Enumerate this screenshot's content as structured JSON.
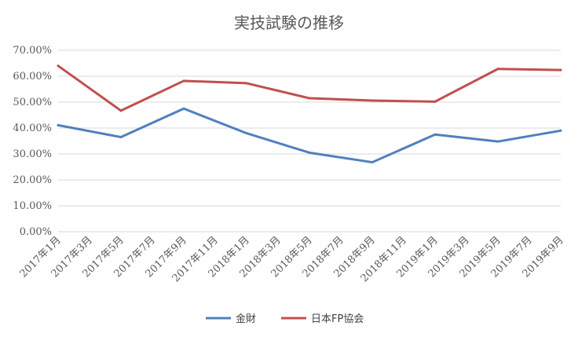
{
  "chart_data": {
    "type": "line",
    "title": "実技試験の推移",
    "categories": [
      "2017年1月",
      "2017年3月",
      "2017年5月",
      "2017年7月",
      "2017年9月",
      "2017年11月",
      "2018年1月",
      "2018年3月",
      "2018年5月",
      "2018年7月",
      "2018年9月",
      "2018年11月",
      "2019年1月",
      "2019年3月",
      "2019年5月",
      "2019年7月",
      "2019年9月"
    ],
    "y_tick_labels": [
      "0.00%",
      "10.00%",
      "20.00%",
      "30.00%",
      "40.00%",
      "50.00%",
      "60.00%",
      "70.00%"
    ],
    "ylim": [
      0,
      0.7
    ],
    "grid": true,
    "legend_position": "bottom",
    "series": [
      {
        "name": "金財",
        "color": "#4F81BD",
        "x": [
          "2017年1月",
          "2017年5月",
          "2017年9月",
          "2018年1月",
          "2018年5月",
          "2018年9月",
          "2019年1月",
          "2019年5月",
          "2019年9月"
        ],
        "values": [
          0.411,
          0.365,
          0.475,
          0.38,
          0.305,
          0.268,
          0.375,
          0.348,
          0.39
        ]
      },
      {
        "name": "日本FP協会",
        "color": "#C0504D",
        "x": [
          "2017年1月",
          "2017年5月",
          "2017年9月",
          "2018年1月",
          "2018年5月",
          "2018年9月",
          "2019年1月",
          "2019年5月",
          "2019年9月"
        ],
        "values": [
          0.64,
          0.467,
          0.582,
          0.573,
          0.515,
          0.506,
          0.502,
          0.628,
          0.624
        ]
      }
    ]
  }
}
